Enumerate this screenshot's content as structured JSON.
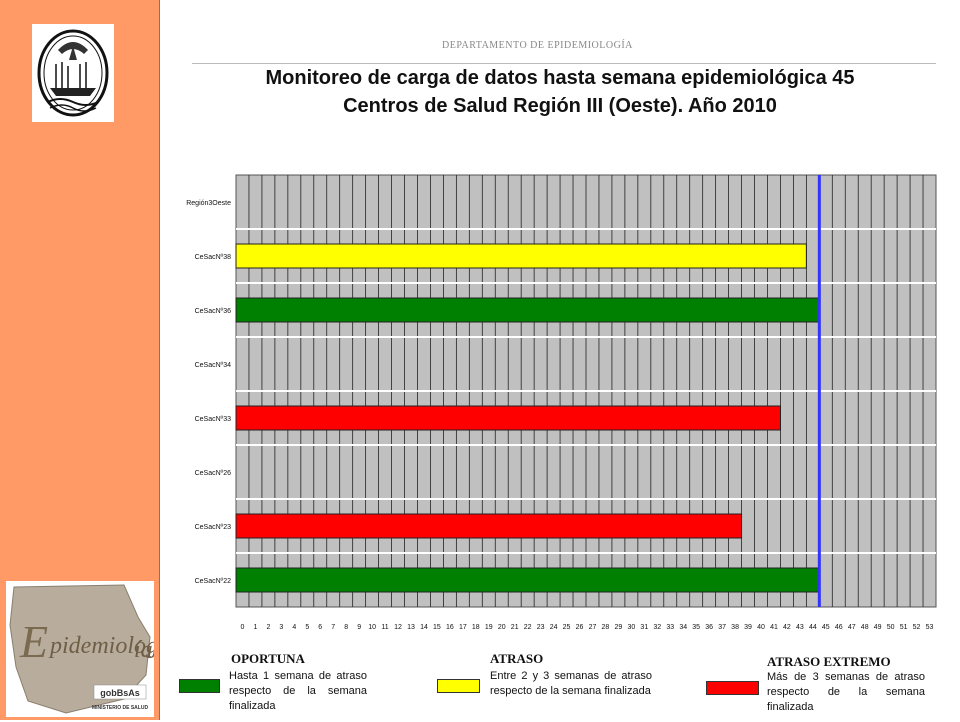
{
  "header": {
    "department": "DEPARTAMENTO DE EPIDEMIOLOGÍA",
    "title_line1": "Monitoreo de carga de datos hasta semana epidemiológica 45",
    "title_line2": "Centros de Salud Región III (Oeste). Año 2010"
  },
  "logos": {
    "seal": "city-coat-of-arms",
    "epi_logo_text": "Epidemiología",
    "gob_text": "gobBsAs",
    "ministry_text": "MINISTERIO DE SALUD"
  },
  "legend": {
    "oportuna": {
      "title": "OPORTUNA",
      "text": "Hasta 1 semana de atraso respecto de la semana finalizada",
      "color": "#008000"
    },
    "atraso": {
      "title": "ATRASO",
      "text": "Entre 2 y 3 semanas de atraso respecto de la semana finalizada",
      "color": "#ffff00"
    },
    "extremo": {
      "title": "ATRASO EXTREMO",
      "text": "Más de 3 semanas de atraso respecto de la semana finalizada",
      "color": "#ff0000"
    }
  },
  "chart_data": {
    "type": "bar",
    "orientation": "horizontal",
    "categories": [
      "Región3Oeste",
      "CeSacNº38",
      "CeSacNº36",
      "CeSacNº34",
      "CeSacNº33",
      "CeSacNº26",
      "CeSacNº23",
      "CeSacNº22"
    ],
    "values": [
      null,
      43,
      44,
      null,
      41,
      null,
      38,
      44
    ],
    "bar_colors": [
      "",
      "#ffff00",
      "#008000",
      "",
      "#ff0000",
      "",
      "#ff0000",
      "#008000"
    ],
    "x_ticks": [
      "0",
      "1",
      "2",
      "3",
      "4",
      "5",
      "6",
      "7",
      "8",
      "9",
      "10",
      "11",
      "12",
      "13",
      "14",
      "15",
      "16",
      "17",
      "18",
      "19",
      "20",
      "21",
      "22",
      "23",
      "24",
      "25",
      "26",
      "27",
      "28",
      "29",
      "30",
      "31",
      "32",
      "33",
      "34",
      "35",
      "36",
      "37",
      "38",
      "39",
      "40",
      "41",
      "42",
      "43",
      "44",
      "45",
      "46",
      "47",
      "48",
      "49",
      "50",
      "51",
      "52",
      "53"
    ],
    "xlim": [
      0,
      53
    ],
    "reference_line": {
      "x": 45,
      "color": "#3333ff"
    },
    "plot_background": "#c0c0c0",
    "grid": true
  }
}
